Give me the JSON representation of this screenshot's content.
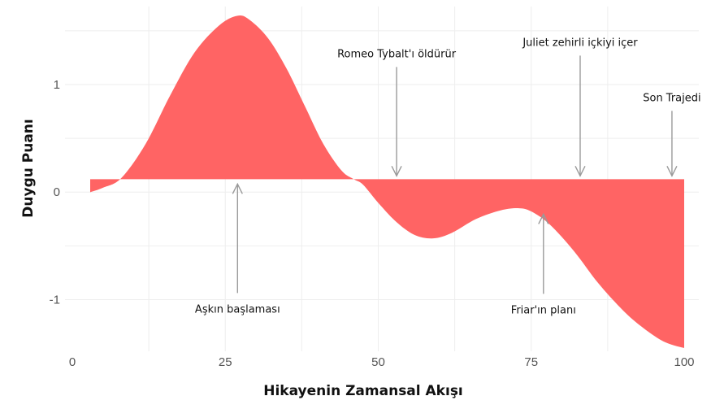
{
  "chart_data": {
    "type": "area",
    "xlabel": "Hikayenin Zamansal Akışı",
    "ylabel": "Duygu Puanı",
    "xlim": [
      0,
      100
    ],
    "ylim": [
      -1.45,
      1.65
    ],
    "x_ticks": [
      {
        "value": 0,
        "label": "0"
      },
      {
        "value": 25,
        "label": "25"
      },
      {
        "value": 50,
        "label": "50"
      },
      {
        "value": 75,
        "label": "75"
      },
      {
        "value": 100,
        "label": "100"
      }
    ],
    "y_ticks": [
      {
        "value": 1,
        "label": "1"
      },
      {
        "value": 0,
        "label": "0"
      },
      {
        "value": -1,
        "label": "-1"
      }
    ],
    "baseline": 0.12,
    "fill_color": "#ff6464",
    "grid": true,
    "series": [
      {
        "x": [
          3,
          5,
          8,
          12,
          16,
          20,
          24,
          27,
          29,
          32,
          35,
          38,
          41,
          44,
          46,
          47.5,
          50,
          53,
          56,
          59,
          62,
          66,
          70,
          73,
          75,
          78,
          82,
          86,
          90,
          93,
          96,
          98,
          100
        ],
        "y": [
          0.0,
          0.04,
          0.13,
          0.45,
          0.9,
          1.3,
          1.55,
          1.64,
          1.6,
          1.43,
          1.15,
          0.8,
          0.45,
          0.2,
          0.12,
          0.07,
          -0.1,
          -0.28,
          -0.4,
          -0.43,
          -0.38,
          -0.25,
          -0.17,
          -0.15,
          -0.18,
          -0.3,
          -0.55,
          -0.85,
          -1.1,
          -1.25,
          -1.37,
          -1.42,
          -1.45
        ]
      }
    ],
    "annotations": [
      {
        "text": "Aşkın başlaması",
        "x": 27,
        "tip_y": 0.12,
        "side": "below"
      },
      {
        "text": "Romeo Tybalt'ı öldürür",
        "x": 53,
        "tip_y": 0.12,
        "side": "above"
      },
      {
        "text": "Friar'ın planı",
        "x": 77,
        "tip_y": -0.16,
        "side": "below"
      },
      {
        "text": "Juliet zehirli içkiyi içer",
        "x": 83,
        "tip_y": 0.12,
        "side": "above"
      },
      {
        "text": "Son Trajedi",
        "x": 98,
        "tip_y": 0.12,
        "side": "above"
      }
    ]
  }
}
